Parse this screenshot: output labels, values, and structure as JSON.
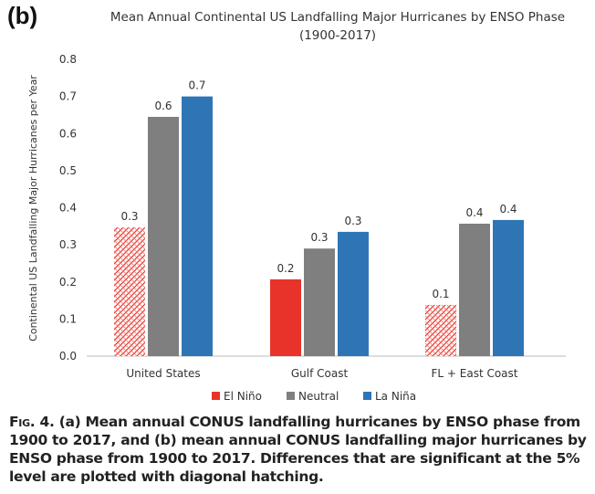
{
  "panel_label": "(b)",
  "caption": {
    "fig": "Fig. 4.",
    "text": "(a) Mean annual CONUS landfalling hurricanes by ENSO phase from 1900 to 2017, and (b) mean annual CONUS landfalling major hurricanes by ENSO phase from 1900 to 2017. Differences that are significant at the 5% level are plotted with diagonal hatching."
  },
  "chart_data": {
    "type": "bar",
    "title": "Mean Annual Continental US Landfalling Major Hurricanes by ENSO Phase",
    "subtitle": "(1900-2017)",
    "xlabel": "",
    "ylabel": "Continental US Landfalling Major Hurricanes per Year",
    "ylim": [
      0,
      0.8
    ],
    "yticks": [
      "0.0",
      "0.1",
      "0.2",
      "0.3",
      "0.4",
      "0.5",
      "0.6",
      "0.7",
      "0.8"
    ],
    "grid": false,
    "legend_position": "bottom",
    "categories": [
      "United States",
      "Gulf Coast",
      "FL + East Coast"
    ],
    "series": [
      {
        "name": "El Niño",
        "color": "#e8332a",
        "values": [
          0.347,
          0.207,
          0.138
        ],
        "labels": [
          "0.3",
          "0.2",
          "0.1"
        ],
        "hatched": [
          true,
          false,
          true
        ]
      },
      {
        "name": "Neutral",
        "color": "#7f7f7f",
        "values": [
          0.645,
          0.29,
          0.357
        ],
        "labels": [
          "0.6",
          "0.3",
          "0.4"
        ],
        "hatched": [
          false,
          false,
          false
        ]
      },
      {
        "name": "La Niña",
        "color": "#2e75b6",
        "values": [
          0.7,
          0.335,
          0.367
        ],
        "labels": [
          "0.7",
          "0.3",
          "0.4"
        ],
        "hatched": [
          false,
          false,
          false
        ]
      }
    ]
  }
}
